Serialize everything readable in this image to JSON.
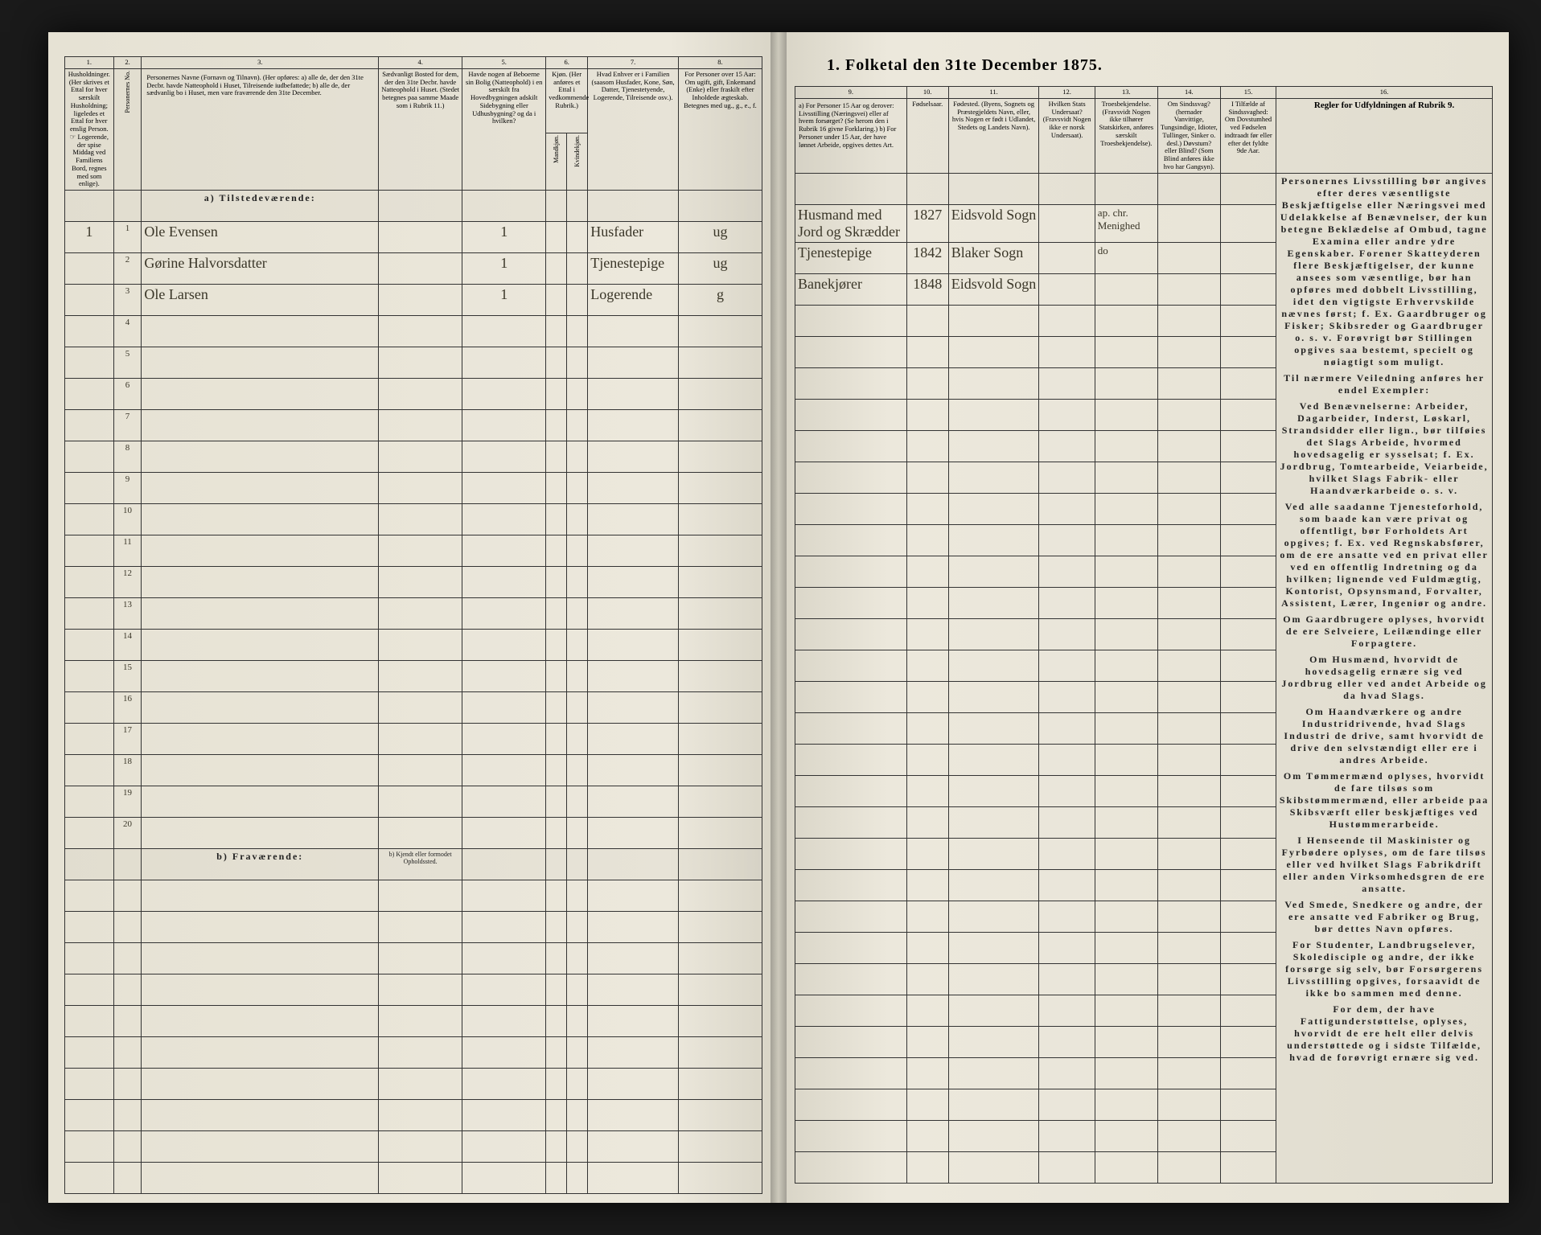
{
  "title": "1.  Folketal den 31te December 1875.",
  "colors": {
    "paper": "#e8e4d8",
    "ink": "#222222",
    "handwriting": "#3a3628",
    "background": "#1a1a1a"
  },
  "left": {
    "columns": {
      "c1": {
        "num": "1.",
        "head": "Husholdninger.\n(Her skrives et Ettal for hver særskilt Husholdning; ligeledes et Ettal for hver enslig Person.\n☞ Logerende, der spise Middag ved Familiens Bord, regnes med som enlige)."
      },
      "c2": {
        "num": "2.",
        "head": "Personernes No."
      },
      "c3": {
        "num": "3.",
        "head": "Personernes Navne (Fornavn og Tilnavn).\n(Her opføres:\na) alle de, der den 31te Decbr. havde Natteophold i Huset, Tilreisende iudbefattede;\nb) alle de, der sædvanlig bo i Huset, men vare fraværende den 31te December."
      },
      "c4": {
        "num": "4.",
        "head": "Sædvanligt Bosted for dem, der den 31te Decbr. havde Natteophold i Huset.\n(Stedet betegnes paa samme Maade som i Rubrik 11.)"
      },
      "c5": {
        "num": "5.",
        "head": "Havde nogen af Beboerne sin Bolig (Natteophold) i en særskilt fra Hovedbygningen adskilt Sidebygning eller Udhusbygning? og da i hvilken?"
      },
      "c6": {
        "num": "6.",
        "head": "Kjøn.\n(Her anføres et Ettal i vedkommende Rubrik.)",
        "sub_m": "Mandkjøn.",
        "sub_k": "Kvindekjøn."
      },
      "c7": {
        "num": "7.",
        "head": "Hvad Enhver er i Familien\n(saasom Husfader, Kone, Søn, Datter, Tjenestetyende, Logerende, Tilreisende osv.)."
      },
      "c8": {
        "num": "8.",
        "head": "For Personer over 15 Aar: Om ugift, gift, Enkemand (Enke) eller fraskilt efter Inholdede ægteskab.\nBetegnes med ug., g., e., f."
      }
    },
    "section_a": "a) Tilstedeværende:",
    "section_b": "b) Fraværende:",
    "section_b_col4": "b) Kjendt eller formodet Opholdssted.",
    "rows": [
      {
        "hh": "1",
        "no": "1",
        "name": "Ole Evensen",
        "c5": "1",
        "c7": "Husfader",
        "c8": "ug"
      },
      {
        "hh": "",
        "no": "2",
        "name": "Gørine Halvorsdatter",
        "c5": "1",
        "c7": "Tjenestepige",
        "c8": "ug"
      },
      {
        "hh": "",
        "no": "3",
        "name": "Ole Larsen",
        "c5": "1",
        "c7": "Logerende",
        "c8": "g"
      }
    ],
    "blank_rows_a": [
      4,
      5,
      6,
      7,
      8,
      9,
      10,
      11,
      12,
      13,
      14,
      15,
      16,
      17,
      18,
      19,
      20
    ],
    "blank_rows_b": 10
  },
  "right": {
    "columns": {
      "c9": {
        "num": "9.",
        "head": "a) For Personer 15 Aar og derover: Livsstilling (Næringsvei) eller af hvem forsørget? (Se herom den i Rubrik 16 givne Forklaring.)\nb) For Personer under 15 Aar, der have lønnet Arbeide, opgives dettes Art."
      },
      "c10": {
        "num": "10.",
        "head": "Fødselsaar."
      },
      "c11": {
        "num": "11.",
        "head": "Fødested.\n(Byens, Sognets og Præstegjeldets Navn, eller, hvis Nogen er født i Udlandet, Stedets og Landets Navn)."
      },
      "c12": {
        "num": "12.",
        "head": "Hvilken Stats Undersaat?\n(Fravsvidt Nogen ikke er norsk Undersaat)."
      },
      "c13": {
        "num": "13.",
        "head": "Troesbekjendelse.\n(Fravsvidt Nogen ikke tilhører Statskirken, anføres særskilt Troesbekjendelse)."
      },
      "c14": {
        "num": "14.",
        "head": "Om Sindssvag?\n(hernader Vanvittige, Tungsindige, Idioter, Tullinger, Sinker o. desl.)\nDøvstum? eller Blind?\n(Som Blind anføres ikke hvo har Gangsyn)."
      },
      "c15": {
        "num": "15.",
        "head": "I Tilfælde af Sindssvaghed: Om Dovstumhed ved Fødselen indtraadt før eller efter det fyldte 9de Aar."
      },
      "c16": {
        "num": "16.",
        "head": "Regler for Udfyldningen af\nRubrik 9."
      }
    },
    "rows": [
      {
        "c9": "Husmand med Jord og Skrædder",
        "c10": "1827",
        "c11": "Eidsvold Sogn",
        "c13": "ap. chr. Menighed"
      },
      {
        "c9": "Tjenestepige",
        "c10": "1842",
        "c11": "Blaker Sogn",
        "c13": "do"
      },
      {
        "c9": "Banekjører",
        "c10": "1848",
        "c11": "Eidsvold Sogn",
        "c13": ""
      }
    ],
    "instructions": [
      "Personernes Livsstilling bør angives efter deres væsentligste Beskjæftigelse eller Næringsvei med Udelakkelse af Benævnelser, der kun betegne Beklædelse af Ombud, tagne Examina eller andre ydre Egenskaber. Forener Skatteyderen flere Beskjæftigelser, der kunne ansees som væsentlige, bør han opføres med dobbelt Livsstilling, idet den vigtigste Erhvervskilde nævnes først; f. Ex. Gaardbruger og Fisker; Skibsreder og Gaardbruger o. s. v. Forøvrigt bør Stillingen opgives saa bestemt, specielt og nøiagtigt som muligt.",
      "Til nærmere Veiledning anføres her endel Exempler:",
      "Ved Benævnelserne: Arbeider, Dagarbeider, Inderst, Løskarl, Strandsidder eller lign., bør tilføies det Slags Arbeide, hvormed hovedsagelig er sysselsat; f. Ex. Jordbrug, Tomtearbeide, Veiarbeide, hvilket Slags Fabrik- eller Haandværkarbeide o. s. v.",
      "Ved alle saadanne Tjenesteforhold, som baade kan være privat og offentligt, bør Forholdets Art opgives; f. Ex. ved Regnskabsfører, om de ere ansatte ved en privat eller ved en offentlig Indretning og da hvilken; lignende ved Fuldmægtig, Kontorist, Opsynsmand, Forvalter, Assistent, Lærer, Ingeniør og andre.",
      "Om Gaardbrugere oplyses, hvorvidt de ere Selveiere, Leilændinge eller Forpagtere.",
      "Om Husmænd, hvorvidt de hovedsagelig ernære sig ved Jordbrug eller ved andet Arbeide og da hvad Slags.",
      "Om Haandværkere og andre Industridrivende, hvad Slags Industri de drive, samt hvorvidt de drive den selvstændigt eller ere i andres Arbeide.",
      "Om Tømmermænd oplyses, hvorvidt de fare tilsøs som Skibstømmermænd, eller arbeide paa Skibsværft eller beskjæftiges ved Hustømmerarbeide.",
      "I Henseende til Maskinister og Fyrbødere oplyses, om de fare tilsøs eller ved hvilket Slags Fabrikdrift eller anden Virksomhedsgren de ere ansatte.",
      "Ved Smede, Snedkere og andre, der ere ansatte ved Fabriker og Brug, bør dettes Navn opføres.",
      "For Studenter, Landbrugselever, Skoledisciple og andre, der ikke forsørge sig selv, bør Forsørgerens Livsstilling opgives, forsaavidt de ikke bo sammen med denne.",
      "For dem, der have Fattigunderstøttelse, oplyses, hvorvidt de ere helt eller delvis understøttede og i sidste Tilfælde, hvad de forøvrigt ernære sig ved."
    ]
  }
}
